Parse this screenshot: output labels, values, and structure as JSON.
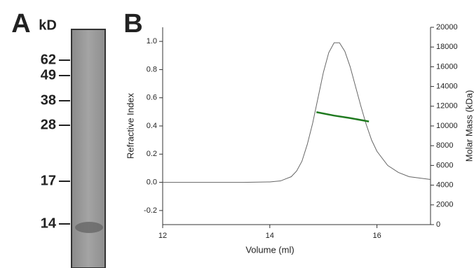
{
  "panel_a": {
    "label": "A",
    "unit": "kD",
    "markers": [
      "62",
      "49",
      "38",
      "28",
      "17",
      "14"
    ]
  },
  "chart_data": {
    "type": "line",
    "panel_label": "B",
    "x_label": "Volume (ml)",
    "y_label": "Refractive Index",
    "y2_label": "Molar Mass (kDa)",
    "xlim": [
      12,
      17
    ],
    "xticks": [
      12,
      14,
      16
    ],
    "ylim": [
      -0.3,
      1.1
    ],
    "yticks": [
      -0.2,
      {
        "value": 0,
        "label": "0.0"
      },
      0.2,
      0.4,
      0.6,
      0.8,
      {
        "value": 1,
        "label": "1.0"
      }
    ],
    "y2lim": [
      0,
      20000
    ],
    "y2ticks": [
      0,
      2000,
      4000,
      6000,
      8000,
      10000,
      12000,
      14000,
      16000,
      18000,
      20000
    ],
    "series": [
      {
        "color": "#666666",
        "x": [
          12,
          13,
          13.5,
          14,
          14.2,
          14.4,
          14.5,
          14.6,
          14.7,
          14.8,
          14.9,
          15.0,
          15.1,
          15.2,
          15.3,
          15.4,
          15.5,
          15.6,
          15.7,
          15.8,
          15.9,
          16.0,
          16.2,
          16.4,
          16.6,
          16.8,
          17.0
        ],
        "values": [
          0,
          0,
          0,
          0.003,
          0.01,
          0.04,
          0.08,
          0.15,
          0.27,
          0.42,
          0.6,
          0.78,
          0.92,
          0.99,
          0.99,
          0.93,
          0.82,
          0.68,
          0.54,
          0.41,
          0.3,
          0.22,
          0.12,
          0.07,
          0.04,
          0.03,
          0.02
        ]
      },
      {
        "color": "#1f7a1f",
        "axis": "y2",
        "x": [
          14.87,
          15.2,
          15.5,
          15.85
        ],
        "values": [
          11400,
          11050,
          10800,
          10450
        ]
      }
    ]
  }
}
